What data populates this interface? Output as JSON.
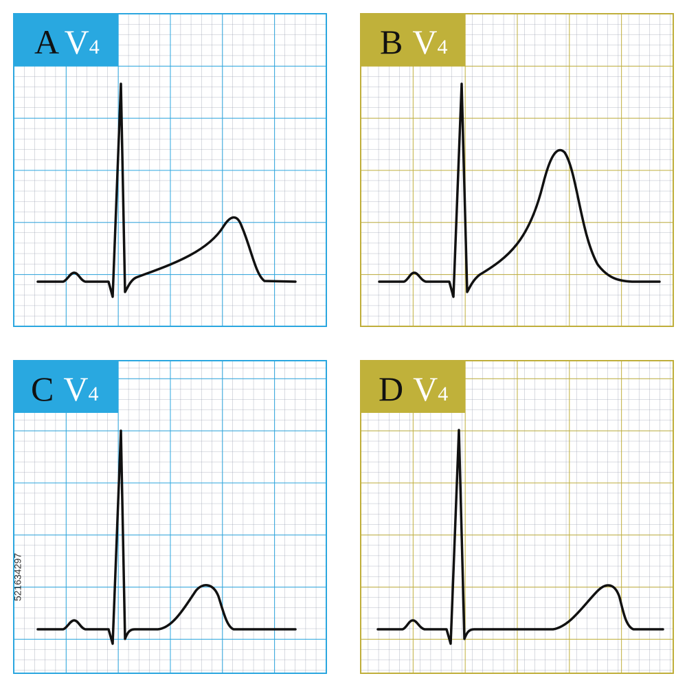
{
  "panels": [
    {
      "letter": "A",
      "lead": "V",
      "lead_index": "4"
    },
    {
      "letter": "B",
      "lead": "V",
      "lead_index": "4"
    },
    {
      "letter": "C",
      "lead": "V",
      "lead_index": "4"
    },
    {
      "letter": "D",
      "lead": "V",
      "lead_index": "4"
    }
  ],
  "watermark": "521634297"
}
